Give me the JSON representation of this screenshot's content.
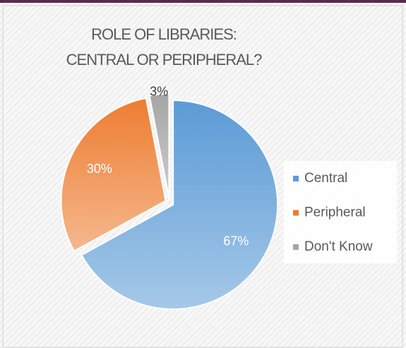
{
  "chart_data": {
    "type": "pie",
    "title": [
      "ROLE OF LIBRARIES:",
      "CENTRAL OR PERIPHERAL?"
    ],
    "categories": [
      "Central",
      "Peripheral",
      "Don't Know"
    ],
    "values": [
      67,
      30,
      3
    ],
    "value_labels": [
      "67%",
      "30%",
      "3%"
    ],
    "colors": [
      "#5b9bd5",
      "#ed7d31",
      "#a5a5a5"
    ],
    "legend": "right"
  }
}
